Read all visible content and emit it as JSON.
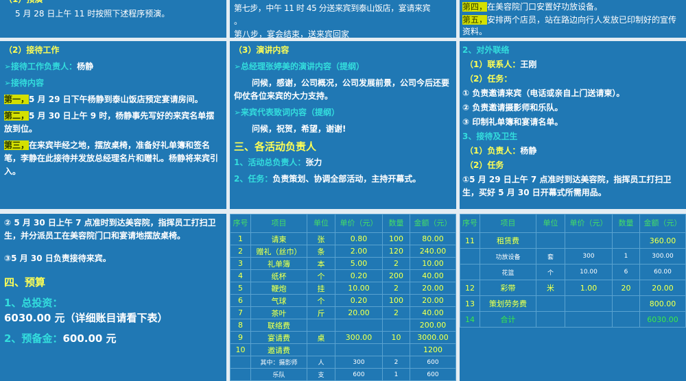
{
  "slides": [
    {
      "id": "s1",
      "lines": [
        "（1）预演",
        "5 月 28 日上午 11 时按照下述程序预演。"
      ]
    },
    {
      "id": "s2",
      "lines": [
        "第七步，中午 11 时 45 分送来宾到泰山饭店，宴请来宾",
        "。",
        "第八步，宴会结束，送来宾回家"
      ]
    },
    {
      "id": "s3",
      "lines": [
        {
          "hl": "第四，",
          "t": "在美容院门口安置好功放设备。"
        },
        {
          "hl": "第五，",
          "t": "安排两个店员，站在路边向行人发放已印制好的宣传资料。"
        }
      ]
    },
    {
      "id": "s4",
      "title": "（2）接待工作",
      "lead_label": "➢接待工作负责人：",
      "lead_value": "杨静",
      "sub": "➢接待内容",
      "items": [
        {
          "hl": "第一，",
          "t": "5 月 29 日下午杨静到泰山饭店预定宴请房间。"
        },
        {
          "hl": "第二，",
          "t": "5 月 30 日上午 9 时，杨静事先写好的来宾名单摆放到位。"
        },
        {
          "hl": "第三，",
          "t": "在来宾毕经之地，摆放桌椅，准备好礼单簿和签名笔，李静在此接待并发放总经理名片和赠礼。杨静将来宾引入。"
        }
      ]
    },
    {
      "id": "s5",
      "title": "（3）演讲内容",
      "h1": "➢总经理张婷美的演讲内容（提纲）",
      "p1": "问候，感谢，公司概况，公司发展前景，公司今后还要仰仗各位来宾的大力支持。",
      "h2": "➢来宾代表致词内容（提纲）",
      "p2": "问候，祝贺，希望，谢谢!",
      "section": "三、各活动负责人",
      "l1_label": "1、活动总负责人：",
      "l1_value": "张力",
      "l2_label": "2、任务：",
      "l2_value": "负责策划、协调全部活动，主持开幕式。"
    },
    {
      "id": "s6",
      "h1": "2、对外联络",
      "a_label": "（1）联系人：",
      "a_value": "王刚",
      "b_label": "（2）任务：",
      "tasks": [
        "① 负责邀请来宾（电话或亲自上门送请柬）。",
        "② 负责邀请摄影师和乐队。",
        "③ 印制礼单簿和宴请名单。"
      ],
      "h2": "3、接待及卫生",
      "c_label": "（1）负责人：",
      "c_value": "杨静",
      "d_label": "（2）任务",
      "d_text": "①5 月 29 日上午 7 点准时到达美容院，指挥员工打扫卫生，买好 5 月 30 日开幕式所需用品。"
    },
    {
      "id": "s7",
      "t1": "② 5 月 30 日上午 7 点准时到达美容院，指挥员工打扫卫生，并分派员工在美容院门口和宴请地摆放桌椅。",
      "t2": "③5 月 30 日负责接待来宾。",
      "section": "四、预算",
      "b1_label": "1、总投资：",
      "b1_value": "6030.00 元（详细账目请看下表）",
      "b2_label": "2、预备金：",
      "b2_value": "600.00 元"
    }
  ],
  "budget_table": {
    "headers": [
      "序号",
      "项目",
      "单位",
      "单价（元）",
      "数量",
      "金额（元）"
    ],
    "rows1": [
      [
        "1",
        "请柬",
        "张",
        "0.80",
        "100",
        "80.00"
      ],
      [
        "2",
        "赠礼（丝巾）",
        "条",
        "2.00",
        "120",
        "240.00"
      ],
      [
        "3",
        "礼单簿",
        "本",
        "5.00",
        "2",
        "10.00"
      ],
      [
        "4",
        "纸杯",
        "个",
        "0.20",
        "200",
        "40.00"
      ],
      [
        "5",
        "鞭炮",
        "挂",
        "10.00",
        "2",
        "20.00"
      ],
      [
        "6",
        "气球",
        "个",
        "0.20",
        "100",
        "20.00"
      ],
      [
        "7",
        "茶叶",
        "斤",
        "20.00",
        "2",
        "40.00"
      ],
      [
        "8",
        "联络费",
        "",
        "",
        "",
        "200.00"
      ],
      [
        "9",
        "宴请费",
        "桌",
        "300.00",
        "10",
        "3000.00"
      ],
      [
        "10",
        "邀请费",
        "",
        "",
        "",
        "1200"
      ],
      [
        "",
        "其中：摄影师",
        "人",
        "300",
        "2",
        "600",
        "sub"
      ],
      [
        "",
        "乐队",
        "支",
        "600",
        "1",
        "600",
        "sub"
      ]
    ],
    "rows2": [
      [
        "11",
        "租赁费",
        "",
        "",
        "",
        "360.00"
      ],
      [
        "",
        "功放设备",
        "套",
        "300",
        "1",
        "300.00",
        "sub"
      ],
      [
        "",
        "花篮",
        "个",
        "10.00",
        "6",
        "60.00",
        "sub"
      ],
      [
        "12",
        "彩带",
        "米",
        "1.00",
        "20",
        "20.00"
      ],
      [
        "13",
        "策划劳务费",
        "",
        "",
        "",
        "800.00"
      ],
      [
        "14",
        "合计",
        "",
        "",
        "",
        "6030.00",
        "g"
      ]
    ]
  },
  "colors": {
    "slide_bg": "#2078b4",
    "gap": "#e4edf3",
    "yellow": "#ffff55",
    "cyan": "#33dddd",
    "highlight": "#d4e000"
  }
}
